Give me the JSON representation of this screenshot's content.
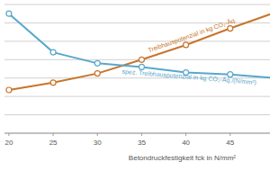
{
  "chart_data": {
    "type": "line",
    "x_label": "Betondruckfestigkeit fck in N/mm²",
    "x": [
      20,
      25,
      30,
      35,
      40,
      45,
      50
    ],
    "xlim": [
      19.5,
      49.5
    ],
    "xticks": [
      20,
      25,
      30,
      35,
      40,
      45
    ],
    "ylim": [
      0,
      7
    ],
    "yticks": [
      0,
      1,
      2,
      3,
      4,
      5,
      6,
      7
    ],
    "grid": true,
    "tick_labels": "x",
    "marker": "circle",
    "series": [
      {
        "name": "Treibhauspotenzial in kg CO₂-Äq.",
        "color": "#c8742a",
        "values": [
          2.35,
          2.75,
          3.25,
          4.0,
          4.8,
          5.7,
          6.55
        ]
      },
      {
        "name": "spez. Treibhauspotenzial in kg CO₂-Äq./(N/mm²)",
        "color": "#58a7cc",
        "values": [
          6.5,
          4.4,
          3.8,
          3.6,
          3.3,
          3.2,
          3.0
        ]
      }
    ]
  }
}
